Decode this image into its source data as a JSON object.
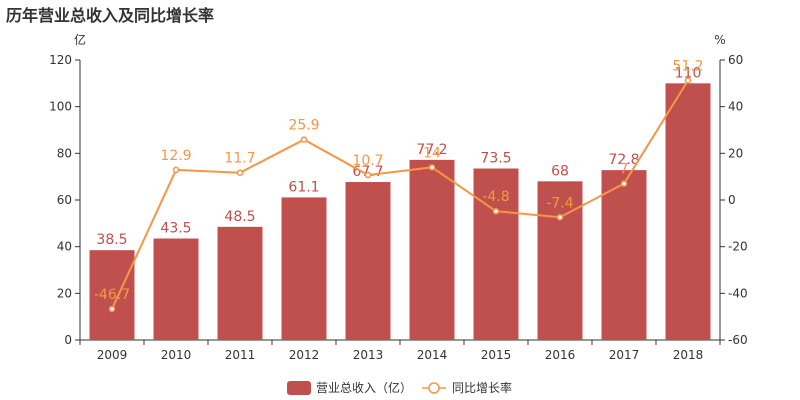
{
  "title": "历年营业总收入及同比增长率",
  "colors": {
    "bar": "#c0504d",
    "line": "#f79646",
    "axis": "#333333"
  },
  "chart_data": {
    "type": "bar",
    "title": "历年营业总收入及同比增长率",
    "categories": [
      "2009",
      "2010",
      "2011",
      "2012",
      "2013",
      "2014",
      "2015",
      "2016",
      "2017",
      "2018"
    ],
    "left_axis": {
      "unit": "亿",
      "ylim": [
        0,
        120
      ],
      "ticks": [
        0,
        20,
        40,
        60,
        80,
        100,
        120
      ]
    },
    "right_axis": {
      "unit": "%",
      "ylim": [
        -60,
        60
      ],
      "ticks": [
        -60,
        -40,
        -20,
        0,
        20,
        40,
        60
      ]
    },
    "series": [
      {
        "name": "营业总收入（亿）",
        "type": "bar",
        "axis": "left",
        "values": [
          38.5,
          43.5,
          48.5,
          61.1,
          67.7,
          77.2,
          73.5,
          68,
          72.8,
          110
        ],
        "labels": [
          "38.5",
          "43.5",
          "48.5",
          "61.1",
          "67.7",
          "77.2",
          "73.5",
          "68",
          "72.8",
          "110"
        ]
      },
      {
        "name": "同比增长率",
        "type": "line",
        "axis": "right",
        "values": [
          -46.7,
          12.9,
          11.7,
          25.9,
          10.7,
          14,
          -4.8,
          -7.4,
          7,
          51.2
        ],
        "labels": [
          "-46.7",
          "12.9",
          "11.7",
          "25.9",
          "10.7",
          "14",
          "-4.8",
          "-7.4",
          "7",
          "51.2"
        ]
      }
    ],
    "legend": {
      "position": "bottom-center"
    },
    "grid": false
  }
}
